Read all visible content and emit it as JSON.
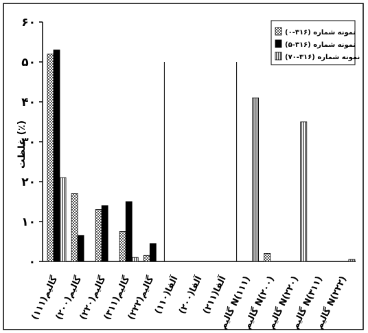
{
  "chart_data": {
    "type": "bar",
    "ylabel": "غلظت (٪)",
    "ylim": [
      0,
      60
    ],
    "yticks": [
      {
        "value": 0,
        "label": "۰"
      },
      {
        "value": 10,
        "label": "۱۰"
      },
      {
        "value": 20,
        "label": "۲۰"
      },
      {
        "value": 30,
        "label": "۳۰"
      },
      {
        "value": 40,
        "label": "۴۰"
      },
      {
        "value": 50,
        "label": "۵۰"
      },
      {
        "value": 60,
        "label": "۶۰"
      }
    ],
    "categories": [
      "گالیم(۱۱۱)",
      "گالیم(۲۰۰)",
      "گالیم(۲۲۰)",
      "گالیم(۳۱۱)",
      "گالیم(۲۲۲)",
      "آلفا(۱۱۰)",
      "آلفا(۲۰۰)",
      "آلفا(۲۱۱)",
      "گالیم N(۱۱۱)",
      "گالیم N(۲۰۰)",
      "گالیم N(۲۲۰)",
      "گالیم N(۳۱۱)",
      "گالیم N(۲۲۲)"
    ],
    "series": [
      {
        "name": "نمونه شماره (۳۱۶-۰)",
        "fill": "hatch",
        "values": [
          52,
          17,
          13,
          7.5,
          1.5,
          0,
          0,
          0,
          0,
          2,
          0,
          0,
          0
        ]
      },
      {
        "name": "نمونه شماره (۳۱۶-۵)",
        "fill": "black",
        "values": [
          53,
          6.5,
          14,
          15,
          4.5,
          0,
          0,
          0,
          0,
          0,
          0,
          0,
          0
        ]
      },
      {
        "name": "نمونه شماره (۳۱۶-۷۰)",
        "fill": "vstripe",
        "values": [
          21,
          0,
          0,
          1,
          0,
          0,
          0,
          0,
          41,
          0,
          35,
          0,
          0.5
        ]
      }
    ],
    "dividers_after_index": [
      4,
      7
    ],
    "legend_position": "top-right",
    "grid": false
  }
}
